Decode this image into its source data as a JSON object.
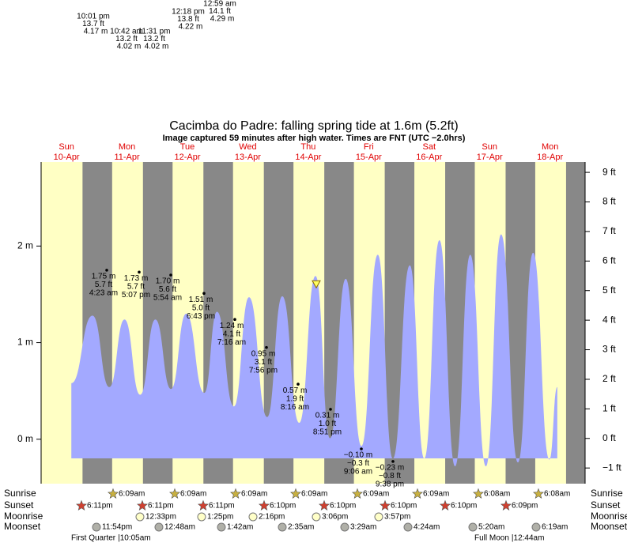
{
  "chart_data": {
    "type": "area",
    "title": "Cacimba do Padre: falling  spring tide at 1.6m (5.2ft)",
    "subtitle": "Image captured 59 minutes after high water. Times are FNT (UTC −2.0hrs)",
    "days": [
      {
        "dow": "Sun",
        "date": "10-Apr"
      },
      {
        "dow": "Mon",
        "date": "11-Apr"
      },
      {
        "dow": "Tue",
        "date": "12-Apr"
      },
      {
        "dow": "Wed",
        "date": "13-Apr"
      },
      {
        "dow": "Thu",
        "date": "14-Apr"
      },
      {
        "dow": "Fri",
        "date": "15-Apr"
      },
      {
        "dow": "Sat",
        "date": "16-Apr"
      },
      {
        "dow": "Sun",
        "date": "17-Apr"
      },
      {
        "dow": "Mon",
        "date": "18-Apr"
      }
    ],
    "x": [
      0.58,
      0.93,
      1.21,
      1.46,
      1.72,
      1.97,
      2.23,
      2.48,
      2.78,
      2.99,
      3.27,
      3.52,
      3.82,
      4.07,
      4.35,
      4.62,
      4.86,
      5.12,
      5.38,
      5.65,
      5.9,
      6.18,
      6.42,
      6.67,
      6.93,
      7.18,
      7.44,
      7.69,
      7.97,
      8.22,
      8.49,
      8.62
    ],
    "values": [
      0.58,
      1.28,
      0.54,
      1.24,
      0.46,
      1.24,
      0.52,
      1.3,
      0.48,
      1.32,
      0.34,
      1.47,
      0.23,
      1.48,
      0.17,
      1.69,
      0.01,
      1.66,
      -0.07,
      1.91,
      -0.2,
      1.8,
      -0.2,
      2.06,
      -0.28,
      1.91,
      -0.28,
      2.12,
      -0.24,
      1.93,
      -0.21,
      0.54
    ],
    "color": "#a3a9ff",
    "xlim": [
      0.08,
      9.08
    ],
    "ylim": [
      -0.46,
      2.87
    ],
    "yticks": [
      {
        "value": 0,
        "label": "0 m"
      },
      {
        "value": 1,
        "label": "1 m"
      },
      {
        "value": 2,
        "label": "2 m"
      }
    ],
    "y2lim": [
      -1.53,
      9.35
    ],
    "y2ticks": [
      {
        "value": -1,
        "label": "−1 ft"
      },
      {
        "value": 0,
        "label": "0 ft"
      },
      {
        "value": 1,
        "label": "1 ft"
      },
      {
        "value": 2,
        "label": "2 ft"
      },
      {
        "value": 3,
        "label": "3 ft"
      },
      {
        "value": 4,
        "label": "4 ft"
      },
      {
        "value": 5,
        "label": "5 ft"
      },
      {
        "value": 6,
        "label": "6 ft"
      },
      {
        "value": 7,
        "label": "7 ft"
      },
      {
        "value": 8,
        "label": "8 ft"
      },
      {
        "value": 9,
        "label": "9 ft"
      }
    ],
    "current_level": 1.6,
    "tide_labels": [
      {
        "value": 1.75,
        "m": "1.75 m",
        "ft": "5.7 ft",
        "time": "4:23 am"
      },
      {
        "value": 1.73,
        "m": "1.73 m",
        "ft": "5.7 ft",
        "time": "5:07 pm"
      },
      {
        "value": 1.7,
        "m": "1.70 m",
        "ft": "5.6 ft",
        "time": "5:54 am"
      },
      {
        "value": 1.51,
        "m": "1.51 m",
        "ft": "5.0 ft",
        "time": "6:43 pm"
      },
      {
        "value": 1.24,
        "m": "1.24 m",
        "ft": "4.1 ft",
        "time": "7:16 am"
      },
      {
        "value": 0.95,
        "m": "0.95 m",
        "ft": "3.1 ft",
        "time": "7:56 pm"
      },
      {
        "value": 0.57,
        "m": "0.57 m",
        "ft": "1.9 ft",
        "time": "8:16 am"
      },
      {
        "value": 0.31,
        "m": "0.31 m",
        "ft": "1.0 ft",
        "time": "8:51 pm"
      },
      {
        "value": -0.1,
        "m": "−0.10 m",
        "ft": "−0.3 ft",
        "time": "9:06 am"
      },
      {
        "value": -0.23,
        "m": "−0.23 m",
        "ft": "−0.8 ft",
        "time": "9:38 pm"
      }
    ],
    "top_labels": [
      {
        "time": "10:01 pm",
        "ft": "13.7 ft",
        "m": "4.17 m"
      },
      {
        "time": "10:42 am",
        "ft": "13.2 ft",
        "m": "4.02 m"
      },
      {
        "time": "11:31 pm",
        "ft": "13.2 ft",
        "m": "4.02 m"
      },
      {
        "time": "12:18 pm",
        "ft": "13.8 ft",
        "m": "4.22 m"
      },
      {
        "time": "12:59 am",
        "ft": "14.1 ft",
        "m": "4.29 m"
      }
    ],
    "row_labels": [
      "Sunrise",
      "Sunset",
      "Moonrise",
      "Moonset"
    ],
    "sunrise": [
      "6:09am",
      "6:09am",
      "6:09am",
      "6:09am",
      "6:09am",
      "6:09am",
      "6:08am",
      "6:08am"
    ],
    "sunset": [
      "6:11pm",
      "6:11pm",
      "6:11pm",
      "6:10pm",
      "6:10pm",
      "6:10pm",
      "6:10pm",
      "6:09pm"
    ],
    "moonrise": [
      "12:33pm",
      "1:25pm",
      "2:16pm",
      "3:06pm",
      "3:57pm"
    ],
    "moonset": [
      "11:54pm",
      "12:48am",
      "1:42am",
      "2:35am",
      "3:29am",
      "4:24am",
      "5:20am",
      "6:19am"
    ],
    "moon_phases": [
      {
        "name": "First Quarter",
        "time": "|10:05am"
      },
      {
        "name": "Full Moon",
        "time": "|12:44am"
      }
    ]
  }
}
